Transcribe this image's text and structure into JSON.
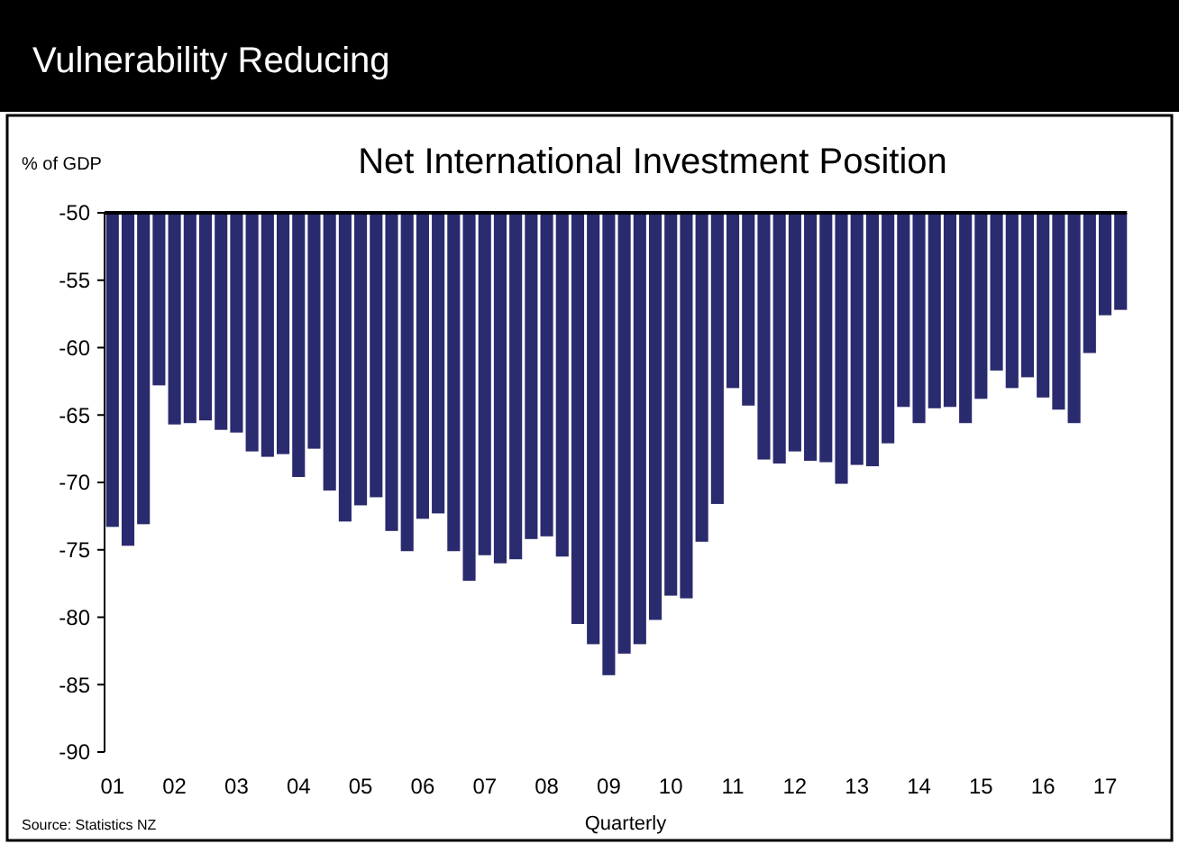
{
  "chart_data": {
    "type": "bar",
    "title": "Vulnerability Reducing",
    "subtitle": "Net International Investment Position",
    "ylabel": "% of GDP",
    "xlabel": "Quarterly",
    "annotations": [
      "Source: Statistics NZ"
    ],
    "categories": [
      "01",
      null,
      null,
      null,
      "02",
      null,
      null,
      null,
      "03",
      null,
      null,
      null,
      "04",
      null,
      null,
      null,
      "05",
      null,
      null,
      null,
      "06",
      null,
      null,
      null,
      "07",
      null,
      null,
      null,
      "08",
      null,
      null,
      null,
      "09",
      null,
      null,
      null,
      "10",
      null,
      null,
      null,
      "11",
      null,
      null,
      null,
      "12",
      null,
      null,
      null,
      "13",
      null,
      null,
      null,
      "14",
      null,
      null,
      null,
      "15",
      null,
      null,
      null,
      "16",
      null,
      null,
      null,
      "17",
      null
    ],
    "values": [
      -73.3,
      -74.7,
      -73.1,
      -62.8,
      -65.7,
      -65.6,
      -65.4,
      -66.1,
      -66.3,
      -67.7,
      -68.1,
      -67.9,
      -69.6,
      -67.5,
      -70.6,
      -72.9,
      -71.7,
      -71.1,
      -73.6,
      -75.1,
      -72.7,
      -72.3,
      -75.1,
      -77.3,
      -75.4,
      -76.0,
      -75.7,
      -74.2,
      -74.0,
      -75.5,
      -80.5,
      -82.0,
      -84.3,
      -82.7,
      -82.0,
      -80.2,
      -78.4,
      -78.6,
      -74.4,
      -71.6,
      -63.0,
      -64.3,
      -68.3,
      -68.6,
      -67.7,
      -68.4,
      -68.5,
      -70.1,
      -68.7,
      -68.8,
      -67.1,
      -64.4,
      -65.6,
      -64.5,
      -64.4,
      -65.6,
      -63.8,
      -61.7,
      -63.0,
      -62.2,
      -63.7,
      -64.6,
      -65.6,
      -60.4,
      -57.6,
      -57.2
    ],
    "color": "#2a2a6e",
    "ylim": [
      -90,
      -50
    ],
    "yticks": [
      -90,
      -85,
      -80,
      -75,
      -70,
      -65,
      -60,
      -55,
      -50
    ],
    "grid": false
  }
}
